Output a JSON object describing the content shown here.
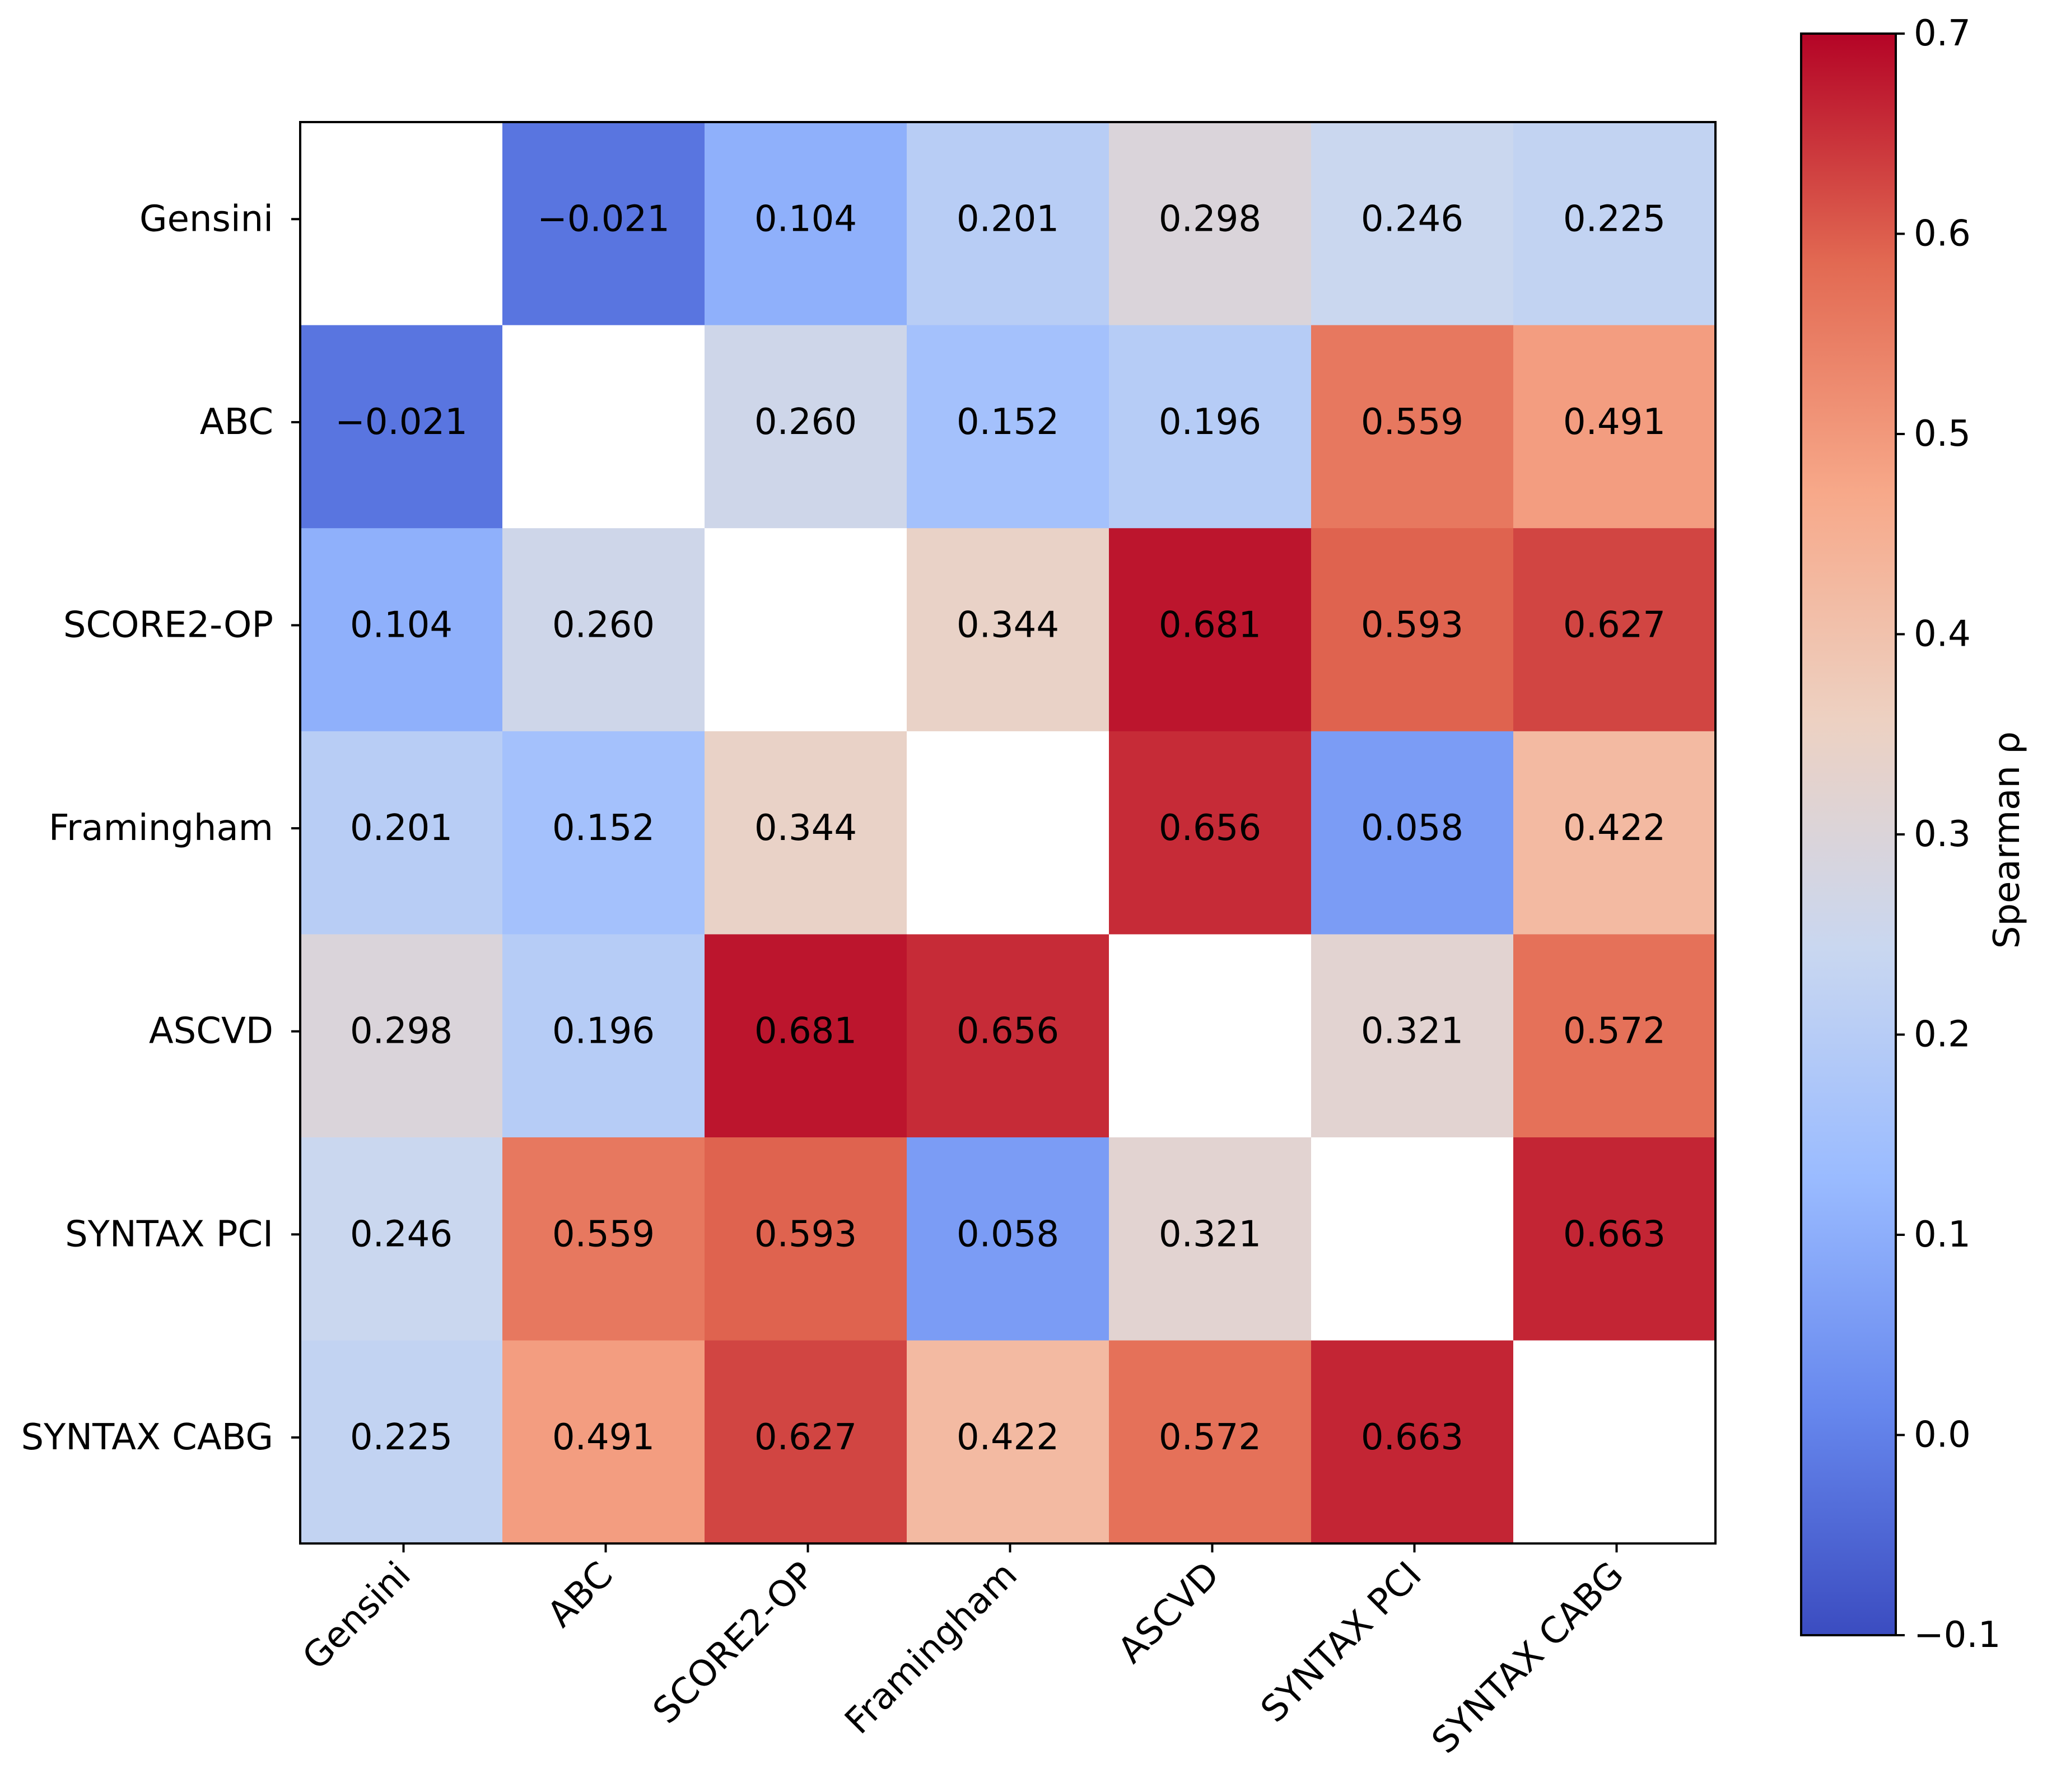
{
  "chart_data": {
    "type": "heatmap",
    "title": "",
    "xlabel": "",
    "ylabel": "",
    "row_labels": [
      "Gensini",
      "ABC",
      "SCORE2-OP",
      "Framingham",
      "ASCVD",
      "SYNTAX PCI",
      "SYNTAX CABG"
    ],
    "col_labels": [
      "Gensini",
      "ABC",
      "SCORE2-OP",
      "Framingham",
      "ASCVD",
      "SYNTAX PCI",
      "SYNTAX CABG"
    ],
    "values": [
      [
        null,
        -0.021,
        0.104,
        0.201,
        0.298,
        0.246,
        0.225
      ],
      [
        -0.021,
        null,
        0.26,
        0.152,
        0.196,
        0.559,
        0.491
      ],
      [
        0.104,
        0.26,
        null,
        0.344,
        0.681,
        0.593,
        0.627
      ],
      [
        0.201,
        0.152,
        0.344,
        null,
        0.656,
        0.058,
        0.422
      ],
      [
        0.298,
        0.196,
        0.681,
        0.656,
        null,
        0.321,
        0.572
      ],
      [
        0.246,
        0.559,
        0.593,
        0.058,
        0.321,
        null,
        0.663
      ],
      [
        0.225,
        0.491,
        0.627,
        0.422,
        0.572,
        0.663,
        null
      ]
    ],
    "value_labels": [
      [
        "",
        "−0.021",
        "0.104",
        "0.201",
        "0.298",
        "0.246",
        "0.225"
      ],
      [
        "−0.021",
        "",
        "0.260",
        "0.152",
        "0.196",
        "0.559",
        "0.491"
      ],
      [
        "0.104",
        "0.260",
        "",
        "0.344",
        "0.681",
        "0.593",
        "0.627"
      ],
      [
        "0.201",
        "0.152",
        "0.344",
        "",
        "0.656",
        "0.058",
        "0.422"
      ],
      [
        "0.298",
        "0.196",
        "0.681",
        "0.656",
        "",
        "0.321",
        "0.572"
      ],
      [
        "0.246",
        "0.559",
        "0.593",
        "0.058",
        "0.321",
        "",
        "0.663"
      ],
      [
        "0.225",
        "0.491",
        "0.627",
        "0.422",
        "0.572",
        "0.663",
        ""
      ]
    ],
    "colormap": "coolwarm",
    "colorbar": {
      "label": "Spearman ρ",
      "range": [
        -0.1,
        0.7
      ],
      "ticks": [
        -0.1,
        0.0,
        0.1,
        0.2,
        0.3,
        0.4,
        0.5,
        0.6,
        0.7
      ],
      "tick_labels": [
        "−0.1",
        "0.0",
        "0.1",
        "0.2",
        "0.3",
        "0.4",
        "0.5",
        "0.6",
        "0.7"
      ]
    },
    "grid": false,
    "x_tick_rotation_deg": 45
  },
  "colors": {
    "diagonal_cell": "#ffffff",
    "frame": "#000000",
    "cmap_stops": [
      "#3b4cc0",
      "#6788ee",
      "#9abbff",
      "#c9d7f0",
      "#edd1c2",
      "#f7a889",
      "#e26952",
      "#b40426"
    ]
  }
}
